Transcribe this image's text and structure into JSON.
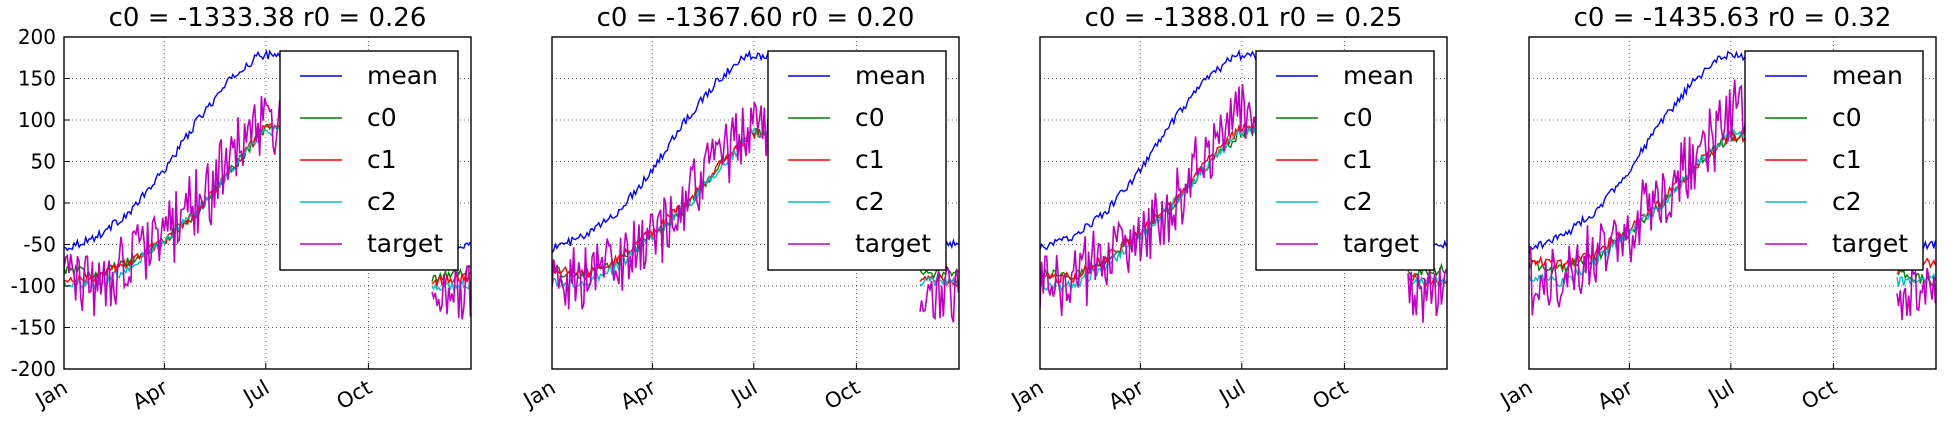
{
  "chart_data": [
    {
      "type": "line",
      "title": "c0 = -1333.38 r0 = 0.26",
      "x_ticks": [
        "Jan",
        "Apr",
        "Jul",
        "Oct"
      ],
      "y_ticks": [
        "200",
        "150",
        "100",
        "50",
        "0",
        "-50",
        "-100",
        "-150",
        "-200"
      ],
      "ylim": [
        -200,
        200
      ],
      "grid": true,
      "legend": {
        "placement": "top-right",
        "entries": [
          "mean",
          "c0",
          "c1",
          "c2",
          "target"
        ]
      },
      "series_anchors": {
        "mean": [
          [
            0,
            -55
          ],
          [
            30,
            -40
          ],
          [
            60,
            -10
          ],
          [
            90,
            40
          ],
          [
            120,
            100
          ],
          [
            150,
            150
          ],
          [
            175,
            178
          ],
          [
            190,
            178
          ],
          [
            200,
            175
          ]
        ],
        "c0": [
          [
            0,
            -80
          ],
          [
            30,
            -85
          ],
          [
            60,
            -70
          ],
          [
            90,
            -45
          ],
          [
            120,
            -10
          ],
          [
            150,
            40
          ],
          [
            180,
            90
          ],
          [
            200,
            90
          ]
        ],
        "c1": [
          [
            0,
            -95
          ],
          [
            30,
            -90
          ],
          [
            60,
            -70
          ],
          [
            90,
            -45
          ],
          [
            120,
            -10
          ],
          [
            150,
            40
          ],
          [
            180,
            90
          ],
          [
            200,
            90
          ]
        ],
        "c2": [
          [
            0,
            -95
          ],
          [
            30,
            -100
          ],
          [
            60,
            -75
          ],
          [
            90,
            -45
          ],
          [
            120,
            -10
          ],
          [
            150,
            40
          ],
          [
            180,
            85
          ],
          [
            200,
            90
          ]
        ],
        "target": [
          [
            0,
            -95
          ],
          [
            30,
            -90
          ],
          [
            60,
            -70
          ],
          [
            90,
            -40
          ],
          [
            120,
            0
          ],
          [
            150,
            50
          ],
          [
            180,
            100
          ],
          [
            200,
            90
          ]
        ]
      },
      "tail_anchors": {
        "mean": [
          [
            330,
            -50
          ],
          [
            364,
            -50
          ]
        ],
        "c0": [
          [
            330,
            -90
          ],
          [
            364,
            -80
          ]
        ],
        "c1": [
          [
            330,
            -95
          ],
          [
            364,
            -90
          ]
        ],
        "c2": [
          [
            330,
            -100
          ],
          [
            364,
            -100
          ]
        ],
        "target": [
          [
            330,
            -110
          ],
          [
            364,
            -110
          ]
        ]
      }
    },
    {
      "type": "line",
      "title": "c0 = -1367.60 r0 = 0.20",
      "x_ticks": [
        "Jan",
        "Apr",
        "Jul",
        "Oct"
      ],
      "ylim": [
        -200,
        200
      ],
      "grid": true,
      "legend": {
        "placement": "top-right",
        "entries": [
          "mean",
          "c0",
          "c1",
          "c2",
          "target"
        ]
      },
      "series_anchors": {
        "mean": [
          [
            0,
            -55
          ],
          [
            30,
            -40
          ],
          [
            60,
            -10
          ],
          [
            90,
            40
          ],
          [
            120,
            100
          ],
          [
            150,
            150
          ],
          [
            175,
            178
          ],
          [
            190,
            178
          ],
          [
            200,
            175
          ]
        ],
        "c0": [
          [
            0,
            -82
          ],
          [
            30,
            -88
          ],
          [
            60,
            -70
          ],
          [
            90,
            -40
          ],
          [
            120,
            -5
          ],
          [
            150,
            45
          ],
          [
            180,
            85
          ],
          [
            200,
            85
          ]
        ],
        "c1": [
          [
            0,
            -80
          ],
          [
            30,
            -85
          ],
          [
            60,
            -65
          ],
          [
            90,
            -35
          ],
          [
            120,
            0
          ],
          [
            150,
            45
          ],
          [
            180,
            85
          ],
          [
            200,
            85
          ]
        ],
        "c2": [
          [
            0,
            -95
          ],
          [
            30,
            -100
          ],
          [
            60,
            -75
          ],
          [
            90,
            -40
          ],
          [
            120,
            -5
          ],
          [
            150,
            40
          ],
          [
            180,
            85
          ],
          [
            200,
            85
          ]
        ],
        "target": [
          [
            0,
            -95
          ],
          [
            30,
            -90
          ],
          [
            60,
            -70
          ],
          [
            90,
            -40
          ],
          [
            120,
            0
          ],
          [
            150,
            50
          ],
          [
            180,
            95
          ],
          [
            200,
            85
          ]
        ]
      },
      "tail_anchors": {
        "mean": [
          [
            330,
            -50
          ],
          [
            364,
            -50
          ]
        ],
        "c0": [
          [
            330,
            -85
          ],
          [
            364,
            -85
          ]
        ],
        "c1": [
          [
            330,
            -90
          ],
          [
            364,
            -95
          ]
        ],
        "c2": [
          [
            330,
            -95
          ],
          [
            364,
            -95
          ]
        ],
        "target": [
          [
            330,
            -110
          ],
          [
            364,
            -110
          ]
        ]
      }
    },
    {
      "type": "line",
      "title": "c0 = -1388.01 r0 = 0.25",
      "x_ticks": [
        "Jan",
        "Apr",
        "Jul",
        "Oct"
      ],
      "ylim": [
        -200,
        200
      ],
      "grid": true,
      "legend": {
        "placement": "top-right",
        "entries": [
          "mean",
          "c0",
          "c1",
          "c2",
          "target"
        ]
      },
      "series_anchors": {
        "mean": [
          [
            0,
            -55
          ],
          [
            30,
            -40
          ],
          [
            60,
            -10
          ],
          [
            90,
            40
          ],
          [
            120,
            100
          ],
          [
            150,
            150
          ],
          [
            175,
            178
          ],
          [
            190,
            178
          ],
          [
            200,
            175
          ]
        ],
        "c0": [
          [
            0,
            -85
          ],
          [
            30,
            -88
          ],
          [
            60,
            -68
          ],
          [
            90,
            -40
          ],
          [
            120,
            0
          ],
          [
            150,
            45
          ],
          [
            180,
            85
          ],
          [
            200,
            90
          ]
        ],
        "c1": [
          [
            0,
            -90
          ],
          [
            30,
            -90
          ],
          [
            60,
            -65
          ],
          [
            90,
            -35
          ],
          [
            120,
            5
          ],
          [
            150,
            50
          ],
          [
            180,
            90
          ],
          [
            200,
            90
          ]
        ],
        "c2": [
          [
            0,
            -100
          ],
          [
            30,
            -100
          ],
          [
            60,
            -75
          ],
          [
            90,
            -40
          ],
          [
            120,
            0
          ],
          [
            150,
            45
          ],
          [
            180,
            85
          ],
          [
            200,
            90
          ]
        ],
        "target": [
          [
            0,
            -95
          ],
          [
            30,
            -90
          ],
          [
            60,
            -70
          ],
          [
            90,
            -35
          ],
          [
            120,
            5
          ],
          [
            150,
            55
          ],
          [
            180,
            110
          ],
          [
            200,
            95
          ]
        ]
      },
      "tail_anchors": {
        "mean": [
          [
            330,
            -50
          ],
          [
            364,
            -50
          ]
        ],
        "c0": [
          [
            330,
            -85
          ],
          [
            364,
            -80
          ]
        ],
        "c1": [
          [
            330,
            -90
          ],
          [
            364,
            -95
          ]
        ],
        "c2": [
          [
            330,
            -95
          ],
          [
            364,
            -95
          ]
        ],
        "target": [
          [
            330,
            -110
          ],
          [
            364,
            -110
          ]
        ]
      }
    },
    {
      "type": "line",
      "title": "c0 = -1435.63 r0 = 0.32",
      "x_ticks": [
        "Jan",
        "Apr",
        "Jul",
        "Oct"
      ],
      "ylim": [
        -200,
        200
      ],
      "grid": true,
      "legend": {
        "placement": "top-right",
        "entries": [
          "mean",
          "c0",
          "c1",
          "c2",
          "target"
        ]
      },
      "series_anchors": {
        "mean": [
          [
            0,
            -55
          ],
          [
            30,
            -40
          ],
          [
            60,
            -10
          ],
          [
            90,
            40
          ],
          [
            120,
            100
          ],
          [
            150,
            150
          ],
          [
            175,
            178
          ],
          [
            190,
            178
          ],
          [
            200,
            175
          ]
        ],
        "c0": [
          [
            0,
            -75
          ],
          [
            30,
            -80
          ],
          [
            60,
            -65
          ],
          [
            90,
            -35
          ],
          [
            120,
            0
          ],
          [
            150,
            45
          ],
          [
            180,
            80
          ],
          [
            200,
            80
          ]
        ],
        "c1": [
          [
            0,
            -70
          ],
          [
            30,
            -75
          ],
          [
            60,
            -60
          ],
          [
            90,
            -30
          ],
          [
            120,
            5
          ],
          [
            150,
            45
          ],
          [
            180,
            80
          ],
          [
            200,
            80
          ]
        ],
        "c2": [
          [
            0,
            -90
          ],
          [
            30,
            -95
          ],
          [
            60,
            -70
          ],
          [
            90,
            -35
          ],
          [
            120,
            0
          ],
          [
            150,
            45
          ],
          [
            180,
            85
          ],
          [
            200,
            85
          ]
        ],
        "target": [
          [
            0,
            -90
          ],
          [
            30,
            -85
          ],
          [
            60,
            -65
          ],
          [
            90,
            -35
          ],
          [
            120,
            5
          ],
          [
            150,
            50
          ],
          [
            180,
            110
          ],
          [
            200,
            120
          ]
        ]
      },
      "tail_anchors": {
        "mean": [
          [
            330,
            -50
          ],
          [
            364,
            -50
          ]
        ],
        "c0": [
          [
            330,
            -85
          ],
          [
            364,
            -95
          ]
        ],
        "c1": [
          [
            330,
            -80
          ],
          [
            364,
            -70
          ]
        ],
        "c2": [
          [
            330,
            -95
          ],
          [
            364,
            -90
          ]
        ],
        "target": [
          [
            330,
            -110
          ],
          [
            364,
            -110
          ]
        ]
      }
    }
  ],
  "series_style": {
    "mean": {
      "color": "#0000ff"
    },
    "c0": {
      "color": "#008000"
    },
    "c1": {
      "color": "#ff0000"
    },
    "c2": {
      "color": "#00bfbf"
    },
    "target": {
      "color": "#bf00bf"
    }
  }
}
